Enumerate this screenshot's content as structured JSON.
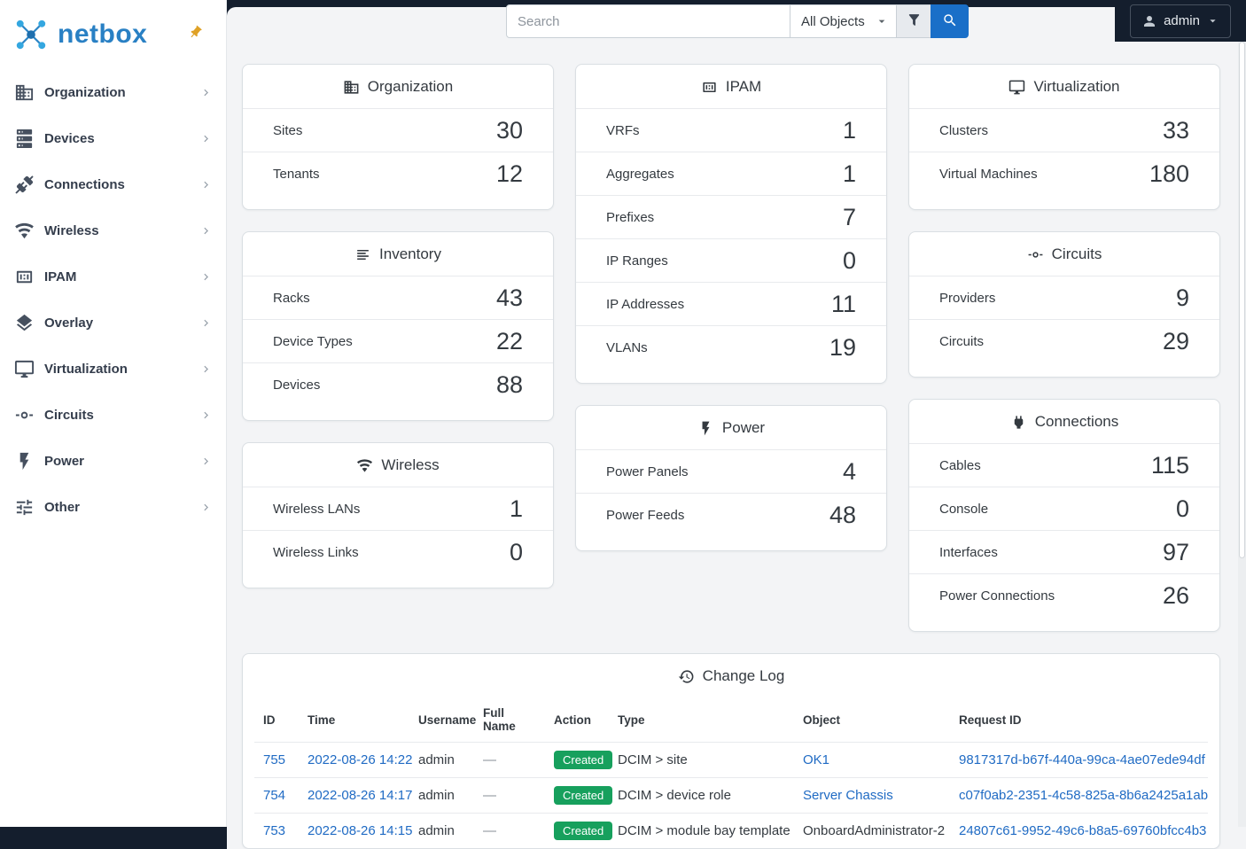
{
  "brand": {
    "name": "netbox"
  },
  "icons": {
    "pin": "pin-icon",
    "search": "magnify-icon",
    "filter": "filter-icon",
    "user": "account-icon",
    "caret": "caret-down-icon",
    "chevron": "chevron-right-icon",
    "changelog": "history-icon"
  },
  "topbar": {
    "search_placeholder": "Search",
    "object_selector": "All Objects",
    "user_label": "admin"
  },
  "colors": {
    "topbar_dark": "#141e2d",
    "page_bg": "#f3f4f6",
    "link": "#206bc4",
    "primary": "#1a6fc8",
    "success": "#17a05d",
    "brand_blue": "#2980c4",
    "pin_orange": "#dfa126"
  },
  "sidebar": {
    "items": [
      {
        "label": "Organization",
        "icon": "building-icon"
      },
      {
        "label": "Devices",
        "icon": "server-icon"
      },
      {
        "label": "Connections",
        "icon": "connection-icon"
      },
      {
        "label": "Wireless",
        "icon": "wifi-icon"
      },
      {
        "label": "IPAM",
        "icon": "counter-icon"
      },
      {
        "label": "Overlay",
        "icon": "layers-icon"
      },
      {
        "label": "Virtualization",
        "icon": "monitor-icon"
      },
      {
        "label": "Circuits",
        "icon": "transit-icon"
      },
      {
        "label": "Power",
        "icon": "flash-icon"
      },
      {
        "label": "Other",
        "icon": "tune-icon"
      }
    ]
  },
  "dashboard": {
    "columns": [
      [
        {
          "title": "Organization",
          "icon": "building-icon",
          "rows": [
            {
              "label": "Sites",
              "value": "30"
            },
            {
              "label": "Tenants",
              "value": "12"
            }
          ]
        },
        {
          "title": "Inventory",
          "icon": "list-icon",
          "rows": [
            {
              "label": "Racks",
              "value": "43"
            },
            {
              "label": "Device Types",
              "value": "22"
            },
            {
              "label": "Devices",
              "value": "88"
            }
          ]
        },
        {
          "title": "Wireless",
          "icon": "wifi-icon",
          "rows": [
            {
              "label": "Wireless LANs",
              "value": "1"
            },
            {
              "label": "Wireless Links",
              "value": "0"
            }
          ]
        }
      ],
      [
        {
          "title": "IPAM",
          "icon": "counter-icon",
          "rows": [
            {
              "label": "VRFs",
              "value": "1"
            },
            {
              "label": "Aggregates",
              "value": "1"
            },
            {
              "label": "Prefixes",
              "value": "7"
            },
            {
              "label": "IP Ranges",
              "value": "0"
            },
            {
              "label": "IP Addresses",
              "value": "11"
            },
            {
              "label": "VLANs",
              "value": "19"
            }
          ]
        },
        {
          "title": "Power",
          "icon": "flash-icon",
          "rows": [
            {
              "label": "Power Panels",
              "value": "4"
            },
            {
              "label": "Power Feeds",
              "value": "48"
            }
          ]
        }
      ],
      [
        {
          "title": "Virtualization",
          "icon": "monitor-icon",
          "rows": [
            {
              "label": "Clusters",
              "value": "33"
            },
            {
              "label": "Virtual Machines",
              "value": "180"
            }
          ]
        },
        {
          "title": "Circuits",
          "icon": "transit-icon",
          "rows": [
            {
              "label": "Providers",
              "value": "9"
            },
            {
              "label": "Circuits",
              "value": "29"
            }
          ]
        },
        {
          "title": "Connections",
          "icon": "cable-icon",
          "rows": [
            {
              "label": "Cables",
              "value": "115"
            },
            {
              "label": "Console",
              "value": "0"
            },
            {
              "label": "Interfaces",
              "value": "97"
            },
            {
              "label": "Power Connections",
              "value": "26"
            }
          ]
        }
      ]
    ]
  },
  "changelog": {
    "title": "Change Log",
    "columns": [
      "ID",
      "Time",
      "Username",
      "Full Name",
      "Action",
      "Type",
      "Object",
      "Request ID"
    ],
    "rows": [
      {
        "id": "755",
        "time": "2022-08-26 14:22",
        "username": "admin",
        "full_name": "—",
        "action": "Created",
        "type": "DCIM > site",
        "object": "OK1",
        "object_is_link": true,
        "request_id": "9817317d-b67f-440a-99ca-4ae07ede94df"
      },
      {
        "id": "754",
        "time": "2022-08-26 14:17",
        "username": "admin",
        "full_name": "—",
        "action": "Created",
        "type": "DCIM > device role",
        "object": "Server Chassis",
        "object_is_link": true,
        "request_id": "c07f0ab2-2351-4c58-825a-8b6a2425a1ab"
      },
      {
        "id": "753",
        "time": "2022-08-26 14:15",
        "username": "admin",
        "full_name": "—",
        "action": "Created",
        "type": "DCIM > module bay template",
        "object": "OnboardAdministrator-2",
        "object_is_link": false,
        "request_id": "24807c61-9952-49c6-b8a5-69760bfcc4b3"
      }
    ]
  }
}
